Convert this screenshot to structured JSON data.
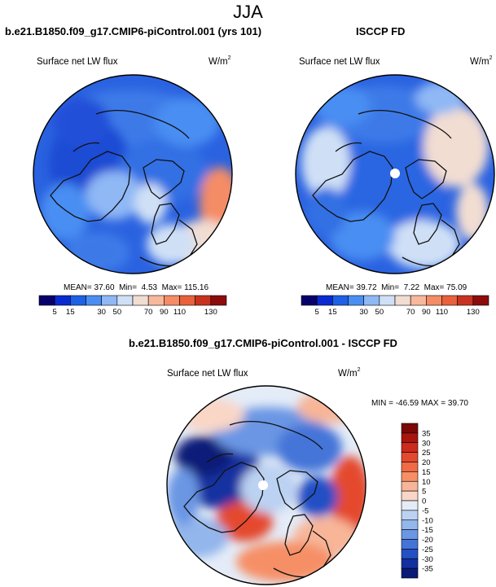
{
  "figure": {
    "title": "JJA",
    "left_panel_title": "b.e21.B1850.f09_g17.CMIP6-piControl.001 (yrs 101)",
    "right_panel_title": "ISCCP FD",
    "bottom_panel_title": "b.e21.B1850.f09_g17.CMIP6-piControl.001 - ISCCP FD"
  },
  "chart_data": [
    {
      "type": "heatmap",
      "projection": "north polar stereographic",
      "season": "JJA",
      "title": "b.e21.B1850.f09_g17.CMIP6-piControl.001 (yrs 101)",
      "variable": "Surface net LW flux",
      "units_base": "W/m",
      "units_exp": "2",
      "stats": {
        "mean_label": "MEAN=",
        "mean": "37.60",
        "min_label": "Min=",
        "min": "4.53",
        "max_label": "Max=",
        "max": "115.16"
      },
      "colorbar": {
        "orientation": "horizontal",
        "levels": [
          "5",
          "15",
          "30",
          "50",
          "70",
          "90",
          "110",
          "130"
        ],
        "colors": [
          "#08006a",
          "#0a2ad0",
          "#1e60e6",
          "#4a8ef2",
          "#8fb8f5",
          "#cfe0f6",
          "#f2ddd2",
          "#f7b89c",
          "#f48c66",
          "#e8603c",
          "#c83220",
          "#8c0c0c"
        ]
      }
    },
    {
      "type": "heatmap",
      "projection": "north polar stereographic",
      "season": "JJA",
      "title": "ISCCP FD",
      "variable": "Surface net LW flux",
      "units_base": "W/m",
      "units_exp": "2",
      "stats": {
        "mean_label": "MEAN=",
        "mean": "39.72",
        "min_label": "Min=",
        "min": "7.22",
        "max_label": "Max=",
        "max": "75.09"
      },
      "colorbar": {
        "orientation": "horizontal",
        "levels": [
          "5",
          "15",
          "30",
          "50",
          "70",
          "90",
          "110",
          "130"
        ],
        "colors": [
          "#08006a",
          "#0a2ad0",
          "#1e60e6",
          "#4a8ef2",
          "#8fb8f5",
          "#cfe0f6",
          "#f2ddd2",
          "#f7b89c",
          "#f48c66",
          "#e8603c",
          "#c83220",
          "#8c0c0c"
        ]
      }
    },
    {
      "type": "heatmap",
      "projection": "north polar stereographic",
      "season": "JJA",
      "title": "b.e21.B1850.f09_g17.CMIP6-piControl.001 - ISCCP FD",
      "variable": "Surface net LW flux",
      "units_base": "W/m",
      "units_exp": "2",
      "stats_text": "MIN = -46.59 MAX = 39.70",
      "colorbar": {
        "orientation": "vertical",
        "levels": [
          "35",
          "30",
          "25",
          "20",
          "15",
          "10",
          "5",
          "0",
          "-5",
          "-10",
          "-15",
          "-20",
          "-25",
          "-30",
          "-35"
        ],
        "colors": [
          "#7a0806",
          "#a8140e",
          "#cc2a1c",
          "#e4482e",
          "#f06a44",
          "#f68f66",
          "#f8b598",
          "#fad6c6",
          "#e4ecf8",
          "#bcd2f2",
          "#93b6ec",
          "#6a96e4",
          "#4474d8",
          "#2450c4",
          "#1430a0",
          "#0a1a78"
        ]
      }
    }
  ]
}
